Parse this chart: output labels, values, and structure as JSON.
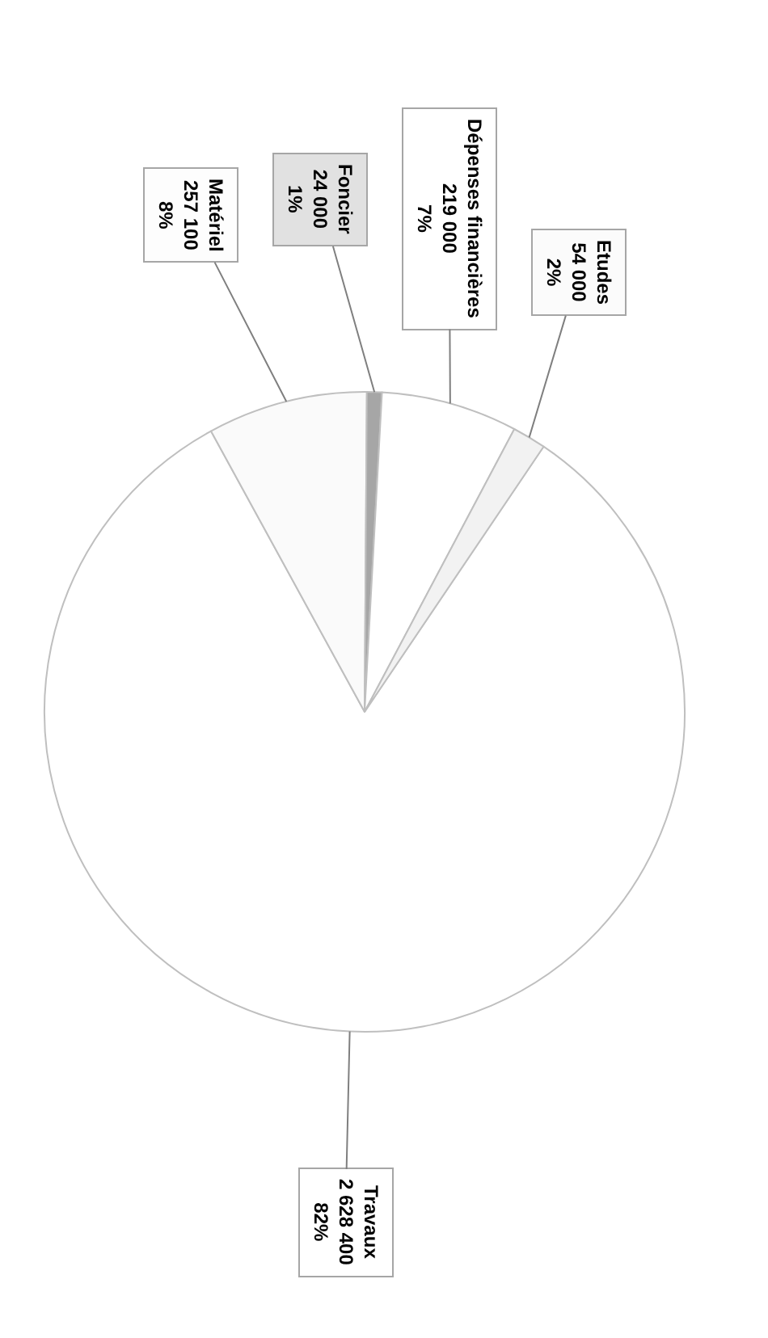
{
  "chart_data": {
    "type": "pie",
    "categories": [
      "Travaux",
      "Matériel",
      "Foncier",
      "Dépenses financières",
      "Etudes"
    ],
    "values": [
      2628400,
      257100,
      24000,
      219000,
      54000
    ],
    "colors": [
      "#ffffff",
      "#fafafa",
      "#a6a6a6",
      "#ffffff",
      "#f2f2f2"
    ],
    "value_labels": [
      "2 628 400\n82%",
      "257 100\n8%",
      "24 000\n1%",
      "219 000\n7%",
      "54 000\n2%"
    ],
    "legend": false
  }
}
